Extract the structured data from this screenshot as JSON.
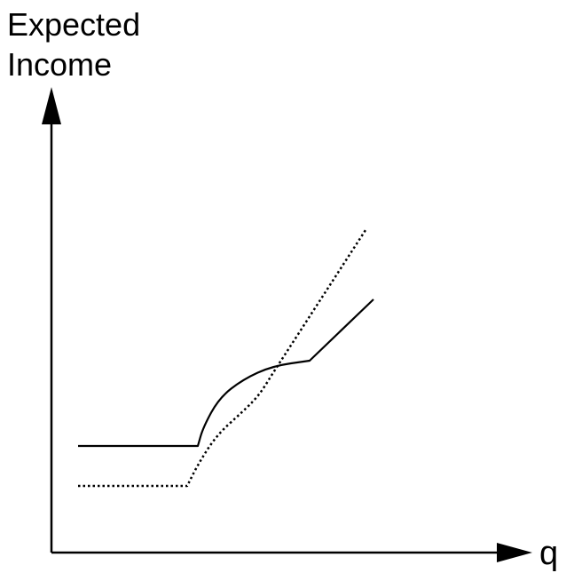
{
  "chart_data": {
    "type": "line",
    "title": "",
    "ylabel_lines": [
      "Expected",
      "Income"
    ],
    "xlabel": "q",
    "axis_ticks": "none",
    "grid": false,
    "legend": "none",
    "series": [
      {
        "style": "solid",
        "color": "#000000",
        "points": [
          [
            0.1,
            0.4
          ],
          [
            0.55,
            0.4
          ],
          [
            0.57,
            0.47
          ],
          [
            0.63,
            0.58
          ],
          [
            0.72,
            0.65
          ],
          [
            0.83,
            0.7
          ],
          [
            0.97,
            0.72
          ],
          [
            1.21,
            0.95
          ]
        ]
      },
      {
        "style": "dotted",
        "color": "#000000",
        "points": [
          [
            0.1,
            0.25
          ],
          [
            0.51,
            0.25
          ],
          [
            0.55,
            0.33
          ],
          [
            0.62,
            0.44
          ],
          [
            0.72,
            0.53
          ],
          [
            0.78,
            0.59
          ],
          [
            0.83,
            0.67
          ],
          [
            1.18,
            1.21
          ]
        ]
      }
    ]
  }
}
